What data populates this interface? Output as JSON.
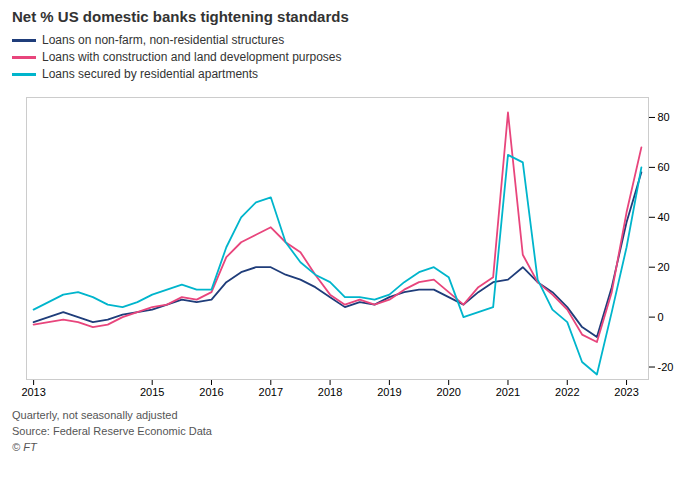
{
  "chart_data": {
    "type": "line",
    "title": "Net % US domestic banks tightening standards",
    "subtitle": "Quarterly, not seasonally adjusted",
    "annotations": [
      "Source: Federal Reserve Economic Data",
      "© FT"
    ],
    "legend": "top",
    "grid": false,
    "xlim": [
      2012.88,
      2023.37
    ],
    "xticks": [
      2013,
      2015,
      2016,
      2017,
      2018,
      2019,
      2020,
      2021,
      2022,
      2023
    ],
    "ylim": [
      -25,
      88
    ],
    "yticks": [
      -20,
      0,
      20,
      40,
      60,
      80
    ],
    "x": [
      2013.0,
      2013.25,
      2013.5,
      2013.75,
      2014.0,
      2014.25,
      2014.5,
      2014.75,
      2015.0,
      2015.25,
      2015.5,
      2015.75,
      2016.0,
      2016.25,
      2016.5,
      2016.75,
      2017.0,
      2017.25,
      2017.5,
      2017.75,
      2018.0,
      2018.25,
      2018.5,
      2018.75,
      2019.0,
      2019.25,
      2019.5,
      2019.75,
      2020.0,
      2020.25,
      2020.5,
      2020.75,
      2021.0,
      2021.25,
      2021.5,
      2021.75,
      2022.0,
      2022.25,
      2022.5,
      2022.75,
      2023.0,
      2023.25
    ],
    "series": [
      {
        "name": "Loans on non-farm, non-residential structures",
        "color": "#1f3d7a",
        "values": [
          -2,
          0,
          2,
          0,
          -2,
          -1,
          1,
          2,
          3,
          5,
          7,
          6,
          7,
          14,
          18,
          20,
          20,
          17,
          15,
          12,
          8,
          4,
          6,
          5,
          8,
          10,
          11,
          11,
          8,
          5,
          10,
          14,
          15,
          20,
          14,
          10,
          4,
          -4,
          -8,
          12,
          38,
          58
        ]
      },
      {
        "name": "Loans with construction and land development purposes",
        "color": "#e8457c",
        "values": [
          -3,
          -2,
          -1,
          -2,
          -4,
          -3,
          0,
          2,
          4,
          5,
          8,
          7,
          10,
          24,
          30,
          33,
          36,
          30,
          26,
          17,
          9,
          5,
          7,
          5,
          7,
          11,
          14,
          15,
          10,
          5,
          12,
          16,
          82,
          25,
          14,
          9,
          3,
          -7,
          -10,
          10,
          42,
          68
        ]
      },
      {
        "name": "Loans secured by residential apartments",
        "color": "#00b5cc",
        "values": [
          3,
          6,
          9,
          10,
          8,
          5,
          4,
          6,
          9,
          11,
          13,
          11,
          11,
          28,
          40,
          46,
          48,
          30,
          22,
          17,
          14,
          8,
          8,
          7,
          9,
          14,
          18,
          20,
          16,
          0,
          2,
          4,
          65,
          62,
          15,
          3,
          -2,
          -18,
          -23,
          2,
          28,
          60
        ]
      }
    ]
  }
}
